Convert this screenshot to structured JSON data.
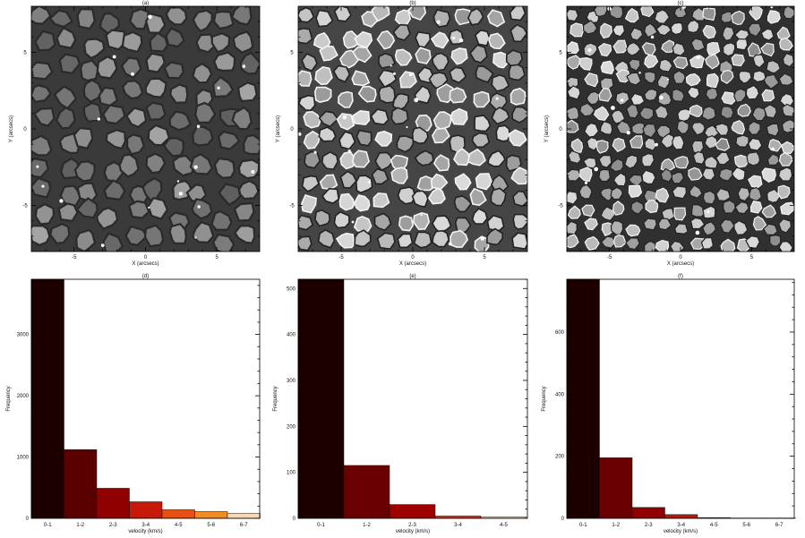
{
  "panels": [
    {
      "label": "(a)",
      "xlabel": "X (arcsecs)",
      "ylabel": "Y (arcsecs)",
      "xticks": [
        -5,
        0,
        5
      ],
      "yticks": [
        -5,
        0,
        5
      ],
      "xlim": [
        -8,
        8
      ],
      "ylim": [
        -8,
        8
      ],
      "style": "smooth",
      "seed": 11
    },
    {
      "label": "(b)",
      "xlabel": "X (arcsecs)",
      "ylabel": "Y (arcsecs)",
      "xticks": [
        -5,
        0,
        5
      ],
      "yticks": [
        -5,
        0,
        5
      ],
      "xlim": [
        -8,
        8
      ],
      "ylim": [
        -8,
        8
      ],
      "style": "sharp",
      "seed": 23
    },
    {
      "label": "(c)",
      "xlabel": "X (arcsecs)",
      "ylabel": "Y (arcsecs)",
      "xticks": [
        -5,
        0,
        5
      ],
      "yticks": [
        -5,
        0,
        5
      ],
      "xlim": [
        -8,
        8
      ],
      "ylim": [
        -8,
        8
      ],
      "style": "fine",
      "seed": 37
    }
  ],
  "chart_data": [
    {
      "type": "bar",
      "title": "(d)",
      "xlabel": "velocity (km/s)",
      "ylabel": "Frequency",
      "categories": [
        "0-1",
        "1-2",
        "2-3",
        "3-4",
        "4-5",
        "5-6",
        "6-7"
      ],
      "values": [
        3900,
        1120,
        490,
        270,
        140,
        110,
        80
      ],
      "ylim": [
        0,
        3900
      ],
      "yticks": [
        0,
        1000,
        2000,
        3000
      ],
      "colors": [
        "#1c0000",
        "#5a0000",
        "#900000",
        "#c81808",
        "#e85010",
        "#f08c20",
        "#f8d8b4"
      ]
    },
    {
      "type": "bar",
      "title": "(e)",
      "xlabel": "velocity (km/s)",
      "ylabel": "Frequency",
      "categories": [
        "0-1",
        "1-2",
        "2-3",
        "3-4",
        "4-5"
      ],
      "values": [
        520,
        115,
        30,
        5,
        3
      ],
      "ylim": [
        0,
        520
      ],
      "yticks": [
        0,
        100,
        200,
        300,
        400,
        500
      ],
      "colors": [
        "#1c0000",
        "#6a0000",
        "#9e0000",
        "#d83010",
        "#f8d8b4"
      ]
    },
    {
      "type": "bar",
      "title": "(f)",
      "xlabel": "velocity (km/s)",
      "ylabel": "Frequency",
      "categories": [
        "0-1",
        "1-2",
        "2-3",
        "3-4",
        "4-5",
        "5-6",
        "6-7"
      ],
      "values": [
        770,
        195,
        35,
        12,
        2,
        1,
        1
      ],
      "ylim": [
        0,
        770
      ],
      "yticks": [
        0,
        200,
        400,
        600
      ],
      "colors": [
        "#1c0000",
        "#6a0000",
        "#900000",
        "#b81808",
        "#e85010",
        "#f08c20",
        "#f8d8b4"
      ]
    }
  ]
}
